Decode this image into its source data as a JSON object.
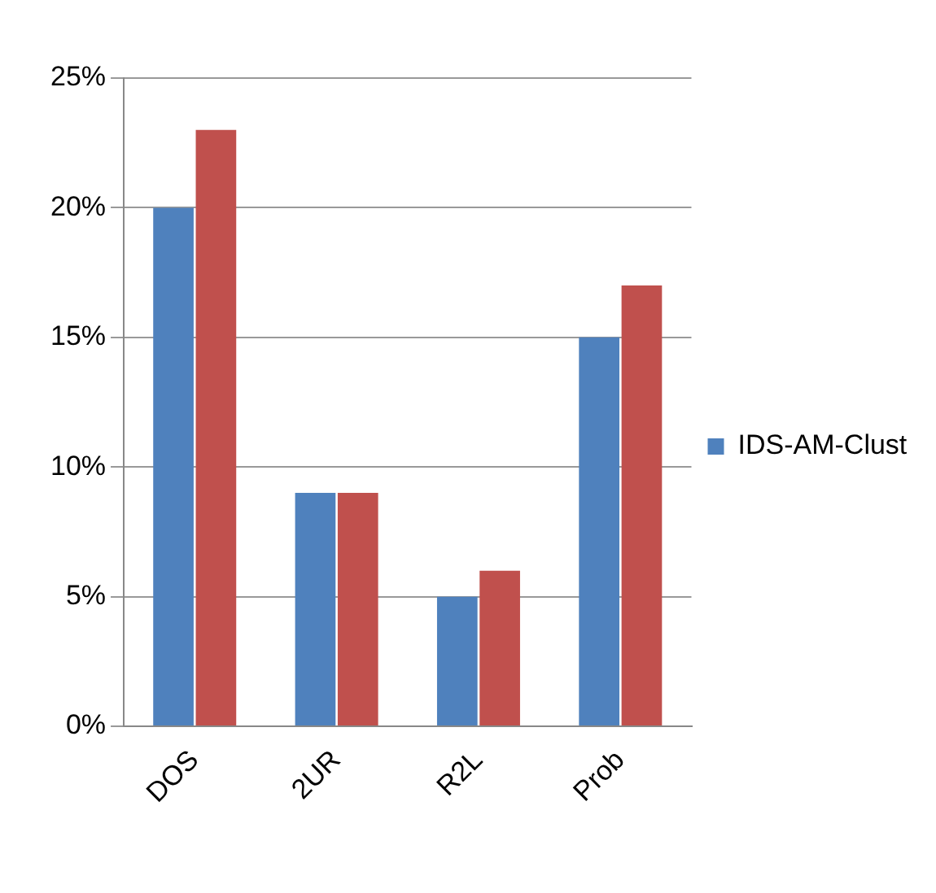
{
  "chart_data": {
    "type": "bar",
    "categories": [
      "DOS",
      "2UR",
      "R2L",
      "Prob"
    ],
    "series": [
      {
        "name": "IDS-AM-Clust",
        "color": "#4f81bd",
        "values": [
          20,
          9,
          5,
          15
        ]
      },
      {
        "color": "#c0504d",
        "values": [
          23,
          9,
          6,
          17
        ]
      }
    ],
    "ylim": [
      0,
      25
    ],
    "yticks": [
      {
        "value": 0,
        "label": "0%"
      },
      {
        "value": 5,
        "label": "5%"
      },
      {
        "value": 10,
        "label": "10%"
      },
      {
        "value": 15,
        "label": "15%"
      },
      {
        "value": 20,
        "label": "20%"
      },
      {
        "value": 25,
        "label": "25%"
      }
    ],
    "grid": "y",
    "legend": "right"
  }
}
